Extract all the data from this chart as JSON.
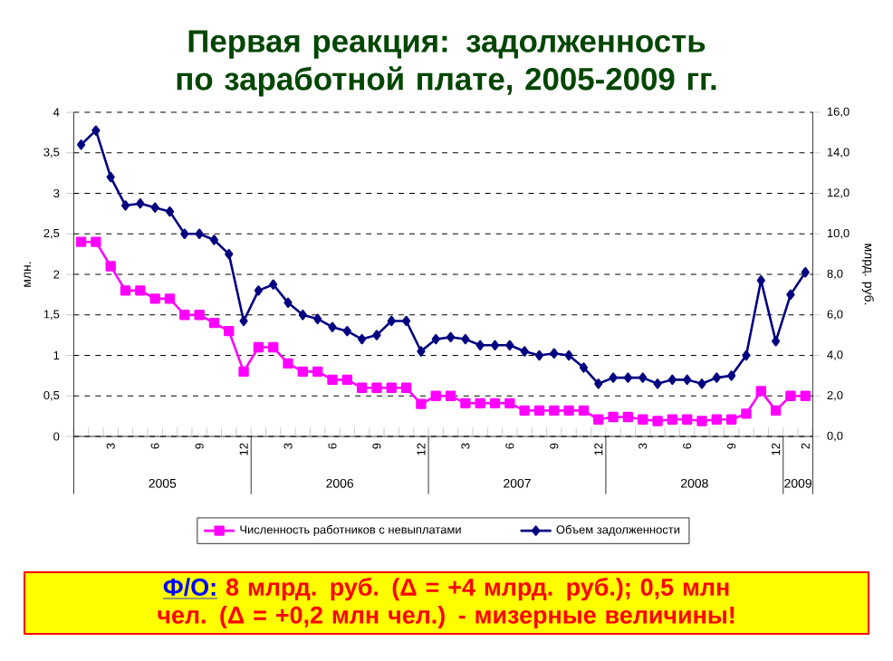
{
  "chart_data": {
    "type": "line",
    "title": "Первая реакция: задолженность по заработной плате, 2005-2009 гг.",
    "ylabel": "млн.",
    "y2label": "млрд. руб.",
    "categories": [
      null,
      null,
      "3",
      null,
      null,
      "6",
      null,
      null,
      "9",
      null,
      null,
      "12",
      null,
      null,
      "3",
      null,
      null,
      "6",
      null,
      null,
      "9",
      null,
      null,
      "12",
      null,
      null,
      "3",
      null,
      null,
      "6",
      null,
      null,
      "9",
      null,
      null,
      "12",
      null,
      null,
      "3",
      null,
      null,
      "6",
      null,
      null,
      "9",
      null,
      null,
      "12",
      null,
      "2"
    ],
    "series": [
      {
        "name": "Численность работников с невыплатами",
        "color": "#ff00ff",
        "marker": "square",
        "values": [
          2.4,
          2.4,
          2.1,
          1.8,
          1.8,
          1.7,
          1.7,
          1.5,
          1.5,
          1.4,
          1.3,
          0.8,
          1.1,
          1.1,
          0.9,
          0.8,
          0.8,
          0.7,
          0.7,
          0.6,
          0.6,
          0.6,
          0.6,
          0.4,
          0.5,
          0.5,
          0.41,
          0.41,
          0.41,
          0.41,
          0.32,
          0.32,
          0.32,
          0.32,
          0.32,
          0.21,
          0.24,
          0.24,
          0.21,
          0.19,
          0.21,
          0.21,
          0.19,
          0.21,
          0.21,
          0.28,
          0.56,
          0.32,
          0.5,
          0.5
        ]
      },
      {
        "name": "Объем задолженности",
        "color": "#000080",
        "marker": "diamond",
        "axis": "y2",
        "values": [
          14.4,
          15.1,
          12.8,
          11.4,
          11.5,
          11.3,
          11.1,
          10.0,
          10.0,
          9.7,
          9.0,
          5.7,
          7.2,
          7.5,
          6.6,
          6.0,
          5.8,
          5.4,
          5.2,
          4.8,
          5.0,
          5.7,
          5.7,
          4.2,
          4.8,
          4.9,
          4.8,
          4.5,
          4.5,
          4.5,
          4.2,
          4.0,
          4.1,
          4.0,
          3.4,
          2.6,
          2.9,
          2.9,
          2.9,
          2.6,
          2.8,
          2.8,
          2.6,
          2.9,
          3.0,
          4.0,
          7.7,
          4.7,
          7.0,
          8.1
        ]
      }
    ],
    "ylim": [
      0,
      4
    ],
    "yticks": [
      0,
      {
        "value": 0.5,
        "label": "0,5"
      },
      1,
      {
        "value": 1.5,
        "label": "1,5"
      },
      2,
      {
        "value": 2.5,
        "label": "2,5"
      },
      3,
      {
        "value": 3.5,
        "label": "3,5"
      },
      4
    ],
    "y2lim": [
      0,
      16
    ],
    "y2ticks": [
      {
        "value": 0,
        "label": "0,0"
      },
      {
        "value": 2,
        "label": "2,0"
      },
      {
        "value": 4,
        "label": "4,0"
      },
      {
        "value": 6,
        "label": "6,0"
      },
      {
        "value": 8,
        "label": "8,0"
      },
      {
        "value": 10,
        "label": "10,0"
      },
      {
        "value": 12,
        "label": "12,0"
      },
      {
        "value": 14,
        "label": "14,0"
      },
      {
        "value": 16,
        "label": "16,0"
      }
    ],
    "grid": "y",
    "legend": "bottom",
    "annotations": [
      "2005",
      "2006",
      "2007",
      "2008",
      "2009",
      "Ф/О:",
      "8 млрд. руб. (Δ = +4 млрд. руб.); 0,5 млн чел. (Δ = +0,2 млн чел.) - мизерные величины!"
    ]
  }
}
